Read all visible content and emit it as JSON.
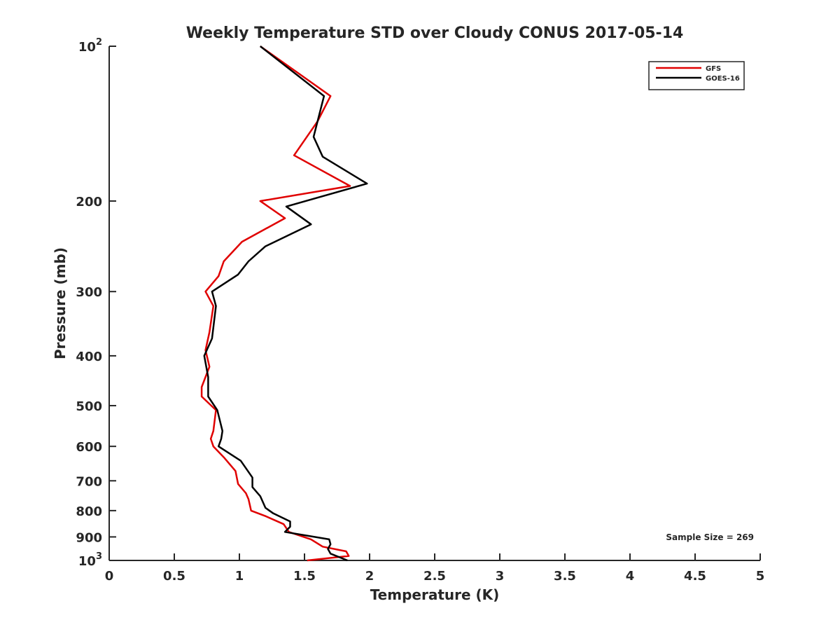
{
  "chart_data": {
    "type": "line",
    "title": "Weekly Temperature STD over Cloudy CONUS 2017-05-14",
    "xlabel": "Temperature (K)",
    "ylabel": "Pressure (mb)",
    "xlim": [
      0,
      5
    ],
    "ylim": [
      100,
      1000
    ],
    "y_scale": "log",
    "y_reversed": true,
    "grid": false,
    "legend_position": "top-right",
    "x_ticks": [
      "0",
      "0.5",
      "1",
      "1.5",
      "2",
      "2.5",
      "3",
      "3.5",
      "4",
      "4.5",
      "5"
    ],
    "y_ticks": [
      {
        "value": 100,
        "base": "10",
        "exp": "2"
      },
      {
        "value": 200,
        "label": "200"
      },
      {
        "value": 300,
        "label": "300"
      },
      {
        "value": 400,
        "label": "400"
      },
      {
        "value": 500,
        "label": "500"
      },
      {
        "value": 600,
        "label": "600"
      },
      {
        "value": 700,
        "label": "700"
      },
      {
        "value": 800,
        "label": "800"
      },
      {
        "value": 900,
        "label": "900"
      },
      {
        "value": 1000,
        "base": "10",
        "exp": "3"
      }
    ],
    "annotation": "Sample Size = 269",
    "series": [
      {
        "name": "GFS",
        "color": "#e00000",
        "points": [
          [
            1.16,
            100
          ],
          [
            1.7,
            125
          ],
          [
            1.6,
            140
          ],
          [
            1.42,
            163
          ],
          [
            1.85,
            187
          ],
          [
            1.16,
            200
          ],
          [
            1.35,
            216
          ],
          [
            1.02,
            240
          ],
          [
            0.88,
            262
          ],
          [
            0.84,
            280
          ],
          [
            0.74,
            300
          ],
          [
            0.8,
            320
          ],
          [
            0.77,
            360
          ],
          [
            0.74,
            390
          ],
          [
            0.77,
            420
          ],
          [
            0.71,
            460
          ],
          [
            0.71,
            480
          ],
          [
            0.82,
            510
          ],
          [
            0.8,
            560
          ],
          [
            0.78,
            580
          ],
          [
            0.8,
            600
          ],
          [
            0.88,
            630
          ],
          [
            0.97,
            670
          ],
          [
            0.99,
            710
          ],
          [
            1.05,
            740
          ],
          [
            1.07,
            760
          ],
          [
            1.08,
            780
          ],
          [
            1.09,
            800
          ],
          [
            1.2,
            820
          ],
          [
            1.34,
            850
          ],
          [
            1.38,
            880
          ],
          [
            1.55,
            910
          ],
          [
            1.64,
            940
          ],
          [
            1.82,
            960
          ],
          [
            1.84,
            980
          ],
          [
            1.52,
            1000
          ]
        ]
      },
      {
        "name": "GOES-16",
        "color": "#000000",
        "points": [
          [
            1.16,
            100
          ],
          [
            1.65,
            125
          ],
          [
            1.57,
            150
          ],
          [
            1.64,
            164
          ],
          [
            1.98,
            185
          ],
          [
            1.36,
            205
          ],
          [
            1.55,
            222
          ],
          [
            1.2,
            245
          ],
          [
            1.07,
            262
          ],
          [
            0.99,
            278
          ],
          [
            0.79,
            300
          ],
          [
            0.82,
            320
          ],
          [
            0.79,
            370
          ],
          [
            0.73,
            400
          ],
          [
            0.76,
            440
          ],
          [
            0.76,
            480
          ],
          [
            0.83,
            510
          ],
          [
            0.87,
            560
          ],
          [
            0.86,
            580
          ],
          [
            0.84,
            600
          ],
          [
            1.01,
            640
          ],
          [
            1.1,
            690
          ],
          [
            1.1,
            720
          ],
          [
            1.16,
            750
          ],
          [
            1.2,
            790
          ],
          [
            1.26,
            810
          ],
          [
            1.39,
            840
          ],
          [
            1.39,
            860
          ],
          [
            1.35,
            880
          ],
          [
            1.69,
            910
          ],
          [
            1.7,
            930
          ],
          [
            1.68,
            950
          ],
          [
            1.7,
            970
          ],
          [
            1.83,
            1000
          ]
        ]
      }
    ]
  }
}
